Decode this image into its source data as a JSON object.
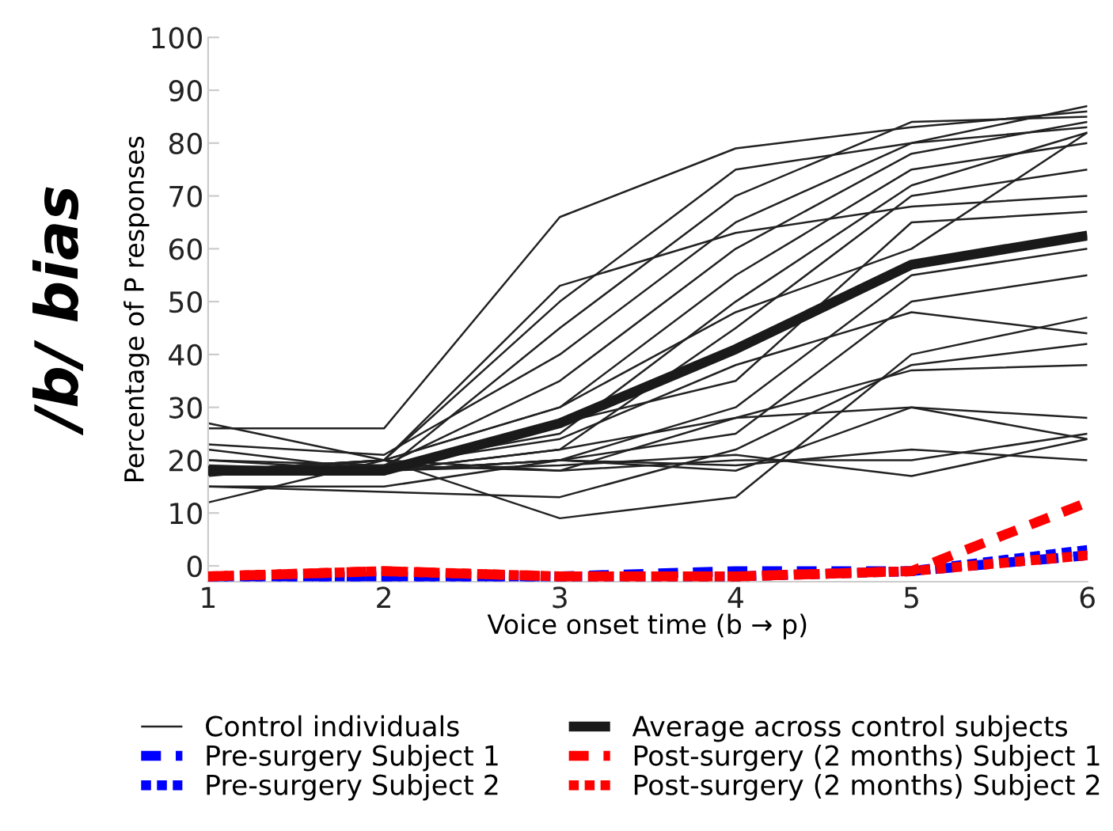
{
  "chart_data": {
    "type": "line",
    "title": "/b/ bias",
    "xlabel": "Voice onset time (b → p)",
    "ylabel": "Percentage of P responses",
    "x": [
      1,
      2,
      3,
      4,
      5,
      6
    ],
    "xlim": [
      1,
      6
    ],
    "xticks": [
      1,
      2,
      3,
      4,
      5,
      6
    ],
    "ylim": [
      -3,
      100
    ],
    "yticks": [
      0,
      10,
      20,
      30,
      40,
      50,
      60,
      70,
      80,
      90,
      100
    ],
    "grid": false,
    "legend": "bottom",
    "marker": "none",
    "series": [
      {
        "name": "Control individuals",
        "color": "#222222",
        "line_style": "solid",
        "values": [
          26,
          26,
          66,
          79,
          83,
          86
        ]
      },
      {
        "color": "#222222",
        "line_style": "solid",
        "values": [
          12,
          20,
          50,
          75,
          80,
          87
        ]
      },
      {
        "color": "#222222",
        "line_style": "solid",
        "values": [
          19,
          18,
          45,
          70,
          84,
          85
        ]
      },
      {
        "color": "#222222",
        "line_style": "solid",
        "values": [
          23,
          21,
          40,
          65,
          80,
          83
        ]
      },
      {
        "color": "#222222",
        "line_style": "solid",
        "values": [
          18,
          19,
          35,
          60,
          78,
          84
        ]
      },
      {
        "color": "#222222",
        "line_style": "solid",
        "values": [
          18,
          20,
          30,
          55,
          75,
          80
        ]
      },
      {
        "color": "#222222",
        "line_style": "solid",
        "values": [
          20,
          19,
          25,
          50,
          72,
          82
        ]
      },
      {
        "color": "#222222",
        "line_style": "solid",
        "values": [
          18,
          18,
          22,
          45,
          70,
          75
        ]
      },
      {
        "color": "#222222",
        "line_style": "solid",
        "values": [
          17,
          20,
          53,
          63,
          68,
          70
        ]
      },
      {
        "color": "#222222",
        "line_style": "solid",
        "values": [
          18,
          18,
          27,
          35,
          65,
          67
        ]
      },
      {
        "color": "#222222",
        "line_style": "solid",
        "values": [
          15,
          15,
          20,
          30,
          55,
          60
        ]
      },
      {
        "color": "#222222",
        "line_style": "solid",
        "values": [
          18,
          18,
          20,
          25,
          50,
          55
        ]
      },
      {
        "color": "#222222",
        "line_style": "solid",
        "values": [
          27,
          20,
          9,
          13,
          40,
          47
        ]
      },
      {
        "color": "#222222",
        "line_style": "solid",
        "values": [
          15,
          14,
          13,
          22,
          38,
          42
        ]
      },
      {
        "color": "#222222",
        "line_style": "solid",
        "values": [
          18,
          18,
          22,
          28,
          37,
          38
        ]
      },
      {
        "color": "#222222",
        "line_style": "solid",
        "values": [
          20,
          18,
          20,
          18,
          30,
          28
        ]
      },
      {
        "color": "#222222",
        "line_style": "solid",
        "values": [
          18,
          20,
          18,
          20,
          20,
          25
        ]
      },
      {
        "color": "#222222",
        "line_style": "solid",
        "values": [
          18,
          18,
          20,
          19,
          22,
          20
        ]
      },
      {
        "color": "#222222",
        "line_style": "solid",
        "values": [
          22,
          18,
          19,
          21,
          17,
          24
        ]
      },
      {
        "color": "#222222",
        "line_style": "solid",
        "values": [
          18,
          19,
          18,
          28,
          30,
          24
        ]
      },
      {
        "color": "#222222",
        "line_style": "solid",
        "values": [
          18,
          20,
          30,
          48,
          60,
          82
        ]
      },
      {
        "color": "#222222",
        "line_style": "solid",
        "values": [
          18,
          19,
          24,
          38,
          48,
          44
        ]
      },
      {
        "name": "Average across control subjects",
        "color": "#1a1a1a",
        "line_style": "solid",
        "values": [
          18,
          18,
          27,
          41,
          57,
          62.5
        ]
      },
      {
        "name": "Pre-surgery Subject 1",
        "color": "#0000ff",
        "line_style": "dashed",
        "values": [
          -2,
          -2,
          -2,
          -1,
          -1,
          2
        ]
      },
      {
        "name": "Pre-surgery Subject 2",
        "color": "#0000ff",
        "line_style": "dotted",
        "values": [
          -2,
          -2,
          -2,
          -2,
          -1,
          3
        ]
      },
      {
        "name": "Post-surgery (2 months) Subject 1",
        "color": "#ff0000",
        "line_style": "dashed",
        "values": [
          -2,
          -1,
          -2,
          -2,
          -1,
          12
        ]
      },
      {
        "name": "Post-surgery (2 months) Subject 2",
        "color": "#ff0000",
        "line_style": "dotted",
        "values": [
          -2,
          -1,
          -2,
          -2,
          -1,
          2
        ]
      }
    ]
  }
}
